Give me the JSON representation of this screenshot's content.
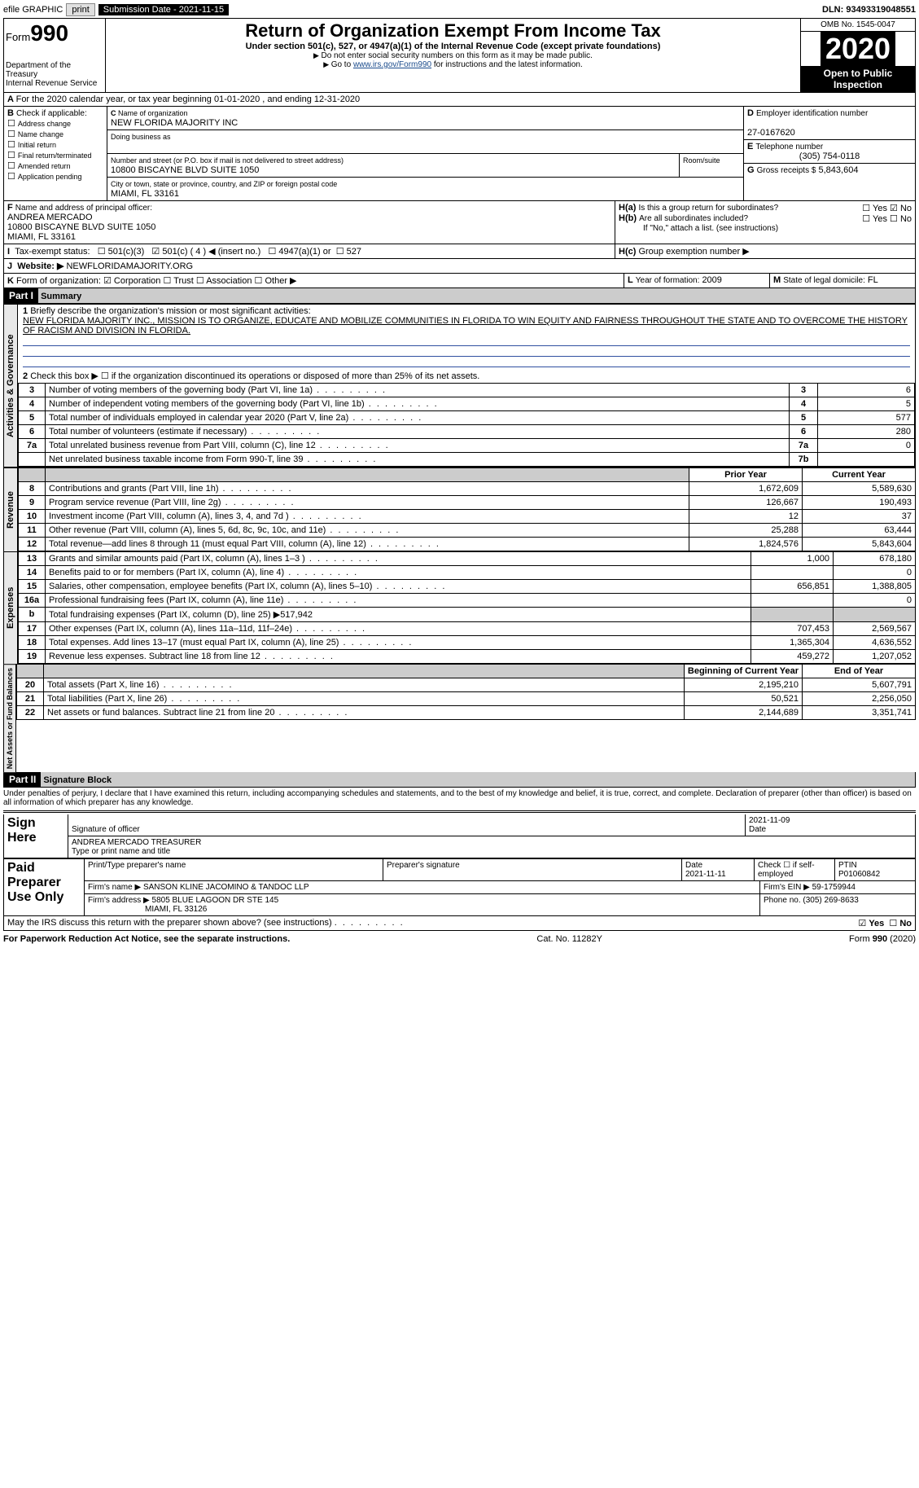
{
  "topbar": {
    "efile": "efile GRAPHIC",
    "print": "print",
    "subdate_lbl": "Submission Date - ",
    "subdate": "2021-11-15",
    "dln_lbl": "DLN: ",
    "dln": "93493319048551"
  },
  "hdr": {
    "form": "Form",
    "n990": "990",
    "dept": "Department of the Treasury",
    "irs": "Internal Revenue Service",
    "title": "Return of Organization Exempt From Income Tax",
    "sub": "Under section 501(c), 527, or 4947(a)(1) of the Internal Revenue Code (except private foundations)",
    "note1": "Do not enter social security numbers on this form as it may be made public.",
    "note2_a": "Go to ",
    "note2_link": "www.irs.gov/Form990",
    "note2_b": " for instructions and the latest information.",
    "omb": "OMB No. 1545-0047",
    "year": "2020",
    "otp": "Open to Public Inspection"
  },
  "A": {
    "text": "For the 2020 calendar year, or tax year beginning 01-01-2020   , and ending 12-31-2020"
  },
  "B": {
    "hdr": "Check if applicable:",
    "items": [
      "Address change",
      "Name change",
      "Initial return",
      "Final return/terminated",
      "Amended return",
      "Application pending"
    ]
  },
  "C": {
    "namelbl": "Name of organization",
    "name": "NEW FLORIDA MAJORITY INC",
    "dba": "Doing business as",
    "addrlbl": "Number and street (or P.O. box if mail is not delivered to street address)",
    "room": "Room/suite",
    "addr": "10800 BISCAYNE BLVD SUITE 1050",
    "citylbl": "City or town, state or province, country, and ZIP or foreign postal code",
    "city": "MIAMI, FL  33161"
  },
  "D": {
    "lbl": "Employer identification number",
    "val": "27-0167620"
  },
  "E": {
    "lbl": "Telephone number",
    "val": "(305) 754-0118"
  },
  "G": {
    "lbl": "Gross receipts $",
    "val": "5,843,604"
  },
  "F": {
    "lbl": "Name and address of principal officer:",
    "name": "ANDREA MERCADO",
    "addr": "10800 BISCAYNE BLVD SUITE 1050",
    "city": "MIAMI, FL  33161"
  },
  "H": {
    "a": "Is this a group return for subordinates?",
    "b": "Are all subordinates included?",
    "b2": "If \"No,\" attach a list. (see instructions)",
    "c": "Group exemption number ▶",
    "yes": "Yes",
    "no": "No"
  },
  "I": {
    "lbl": "Tax-exempt status:",
    "o1": "501(c)(3)",
    "o2": "501(c) ( 4 ) ◀ (insert no.)",
    "o3": "4947(a)(1) or",
    "o4": "527"
  },
  "J": {
    "lbl": "Website: ▶",
    "val": "NEWFLORIDAMAJORITY.ORG"
  },
  "K": {
    "lbl": "Form of organization:",
    "o1": "Corporation",
    "o2": "Trust",
    "o3": "Association",
    "o4": "Other ▶"
  },
  "L": {
    "lbl": "Year of formation:",
    "val": "2009"
  },
  "M": {
    "lbl": "State of legal domicile:",
    "val": "FL"
  },
  "part1": {
    "hdr": "Part I",
    "title": "Summary"
  },
  "gov": {
    "label": "Activities & Governance",
    "l1": "Briefly describe the organization's mission or most significant activities:",
    "mission": "NEW FLORIDA MAJORITY INC., MISSION IS TO ORGANIZE, EDUCATE AND MOBILIZE COMMUNITIES IN FLORIDA TO WIN EQUITY AND FAIRNESS THROUGHOUT THE STATE AND TO OVERCOME THE HISTORY OF RACISM AND DIVISION IN FLORIDA.",
    "l2": "Check this box ▶ ☐  if the organization discontinued its operations or disposed of more than 25% of its net assets.",
    "rows": [
      {
        "n": "3",
        "t": "Number of voting members of the governing body (Part VI, line 1a)",
        "b": "3",
        "v": "6"
      },
      {
        "n": "4",
        "t": "Number of independent voting members of the governing body (Part VI, line 1b)",
        "b": "4",
        "v": "5"
      },
      {
        "n": "5",
        "t": "Total number of individuals employed in calendar year 2020 (Part V, line 2a)",
        "b": "5",
        "v": "577"
      },
      {
        "n": "6",
        "t": "Total number of volunteers (estimate if necessary)",
        "b": "6",
        "v": "280"
      },
      {
        "n": "7a",
        "t": "Total unrelated business revenue from Part VIII, column (C), line 12",
        "b": "7a",
        "v": "0"
      },
      {
        "n": "",
        "t": "Net unrelated business taxable income from Form 990-T, line 39",
        "b": "7b",
        "v": ""
      }
    ]
  },
  "cols": {
    "py": "Prior Year",
    "cy": "Current Year",
    "bcy": "Beginning of Current Year",
    "eoy": "End of Year"
  },
  "rev": {
    "label": "Revenue",
    "rows": [
      {
        "n": "8",
        "t": "Contributions and grants (Part VIII, line 1h)",
        "py": "1,672,609",
        "cy": "5,589,630"
      },
      {
        "n": "9",
        "t": "Program service revenue (Part VIII, line 2g)",
        "py": "126,667",
        "cy": "190,493"
      },
      {
        "n": "10",
        "t": "Investment income (Part VIII, column (A), lines 3, 4, and 7d )",
        "py": "12",
        "cy": "37"
      },
      {
        "n": "11",
        "t": "Other revenue (Part VIII, column (A), lines 5, 6d, 8c, 9c, 10c, and 11e)",
        "py": "25,288",
        "cy": "63,444"
      },
      {
        "n": "12",
        "t": "Total revenue—add lines 8 through 11 (must equal Part VIII, column (A), line 12)",
        "py": "1,824,576",
        "cy": "5,843,604"
      }
    ]
  },
  "exp": {
    "label": "Expenses",
    "rows": [
      {
        "n": "13",
        "t": "Grants and similar amounts paid (Part IX, column (A), lines 1–3 )",
        "py": "1,000",
        "cy": "678,180"
      },
      {
        "n": "14",
        "t": "Benefits paid to or for members (Part IX, column (A), line 4)",
        "py": "",
        "cy": "0"
      },
      {
        "n": "15",
        "t": "Salaries, other compensation, employee benefits (Part IX, column (A), lines 5–10)",
        "py": "656,851",
        "cy": "1,388,805"
      },
      {
        "n": "16a",
        "t": "Professional fundraising fees (Part IX, column (A), line 11e)",
        "py": "",
        "cy": "0"
      },
      {
        "n": "b",
        "t": "Total fundraising expenses (Part IX, column (D), line 25) ▶517,942",
        "shade": true
      },
      {
        "n": "17",
        "t": "Other expenses (Part IX, column (A), lines 11a–11d, 11f–24e)",
        "py": "707,453",
        "cy": "2,569,567"
      },
      {
        "n": "18",
        "t": "Total expenses. Add lines 13–17 (must equal Part IX, column (A), line 25)",
        "py": "1,365,304",
        "cy": "4,636,552"
      },
      {
        "n": "19",
        "t": "Revenue less expenses. Subtract line 18 from line 12",
        "py": "459,272",
        "cy": "1,207,052"
      }
    ]
  },
  "na": {
    "label": "Net Assets or Fund Balances",
    "rows": [
      {
        "n": "20",
        "t": "Total assets (Part X, line 16)",
        "py": "2,195,210",
        "cy": "5,607,791"
      },
      {
        "n": "21",
        "t": "Total liabilities (Part X, line 26)",
        "py": "50,521",
        "cy": "2,256,050"
      },
      {
        "n": "22",
        "t": "Net assets or fund balances. Subtract line 21 from line 20",
        "py": "2,144,689",
        "cy": "3,351,741"
      }
    ]
  },
  "part2": {
    "hdr": "Part II",
    "title": "Signature Block",
    "decl": "Under penalties of perjury, I declare that I have examined this return, including accompanying schedules and statements, and to the best of my knowledge and belief, it is true, correct, and complete. Declaration of preparer (other than officer) is based on all information of which preparer has any knowledge."
  },
  "sign": {
    "here": "Sign Here",
    "sig": "Signature of officer",
    "date": "Date",
    "dateval": "2021-11-09",
    "name": "ANDREA MERCADO  TREASURER",
    "typelbl": "Type or print name and title"
  },
  "prep": {
    "here": "Paid Preparer Use Only",
    "h1": "Print/Type preparer's name",
    "h2": "Preparer's signature",
    "h3": "Date",
    "dateval": "2021-11-11",
    "h4": "Check ☐ if self-employed",
    "h5": "PTIN",
    "ptin": "P01060842",
    "firmlbl": "Firm's name   ▶",
    "firm": "SANSON KLINE JACOMINO & TANDOC LLP",
    "einlbl": "Firm's EIN ▶",
    "ein": "59-1759944",
    "addrlbl": "Firm's address ▶",
    "addr": "5805 BLUE LAGOON DR STE 145",
    "city": "MIAMI, FL  33126",
    "phonelbl": "Phone no.",
    "phone": "(305) 269-8633"
  },
  "discuss": {
    "q": "May the IRS discuss this return with the preparer shown above? (see instructions)",
    "yes": "Yes",
    "no": "No"
  },
  "ftr": {
    "l": "For Paperwork Reduction Act Notice, see the separate instructions.",
    "c": "Cat. No. 11282Y",
    "r": "Form 990 (2020)"
  }
}
